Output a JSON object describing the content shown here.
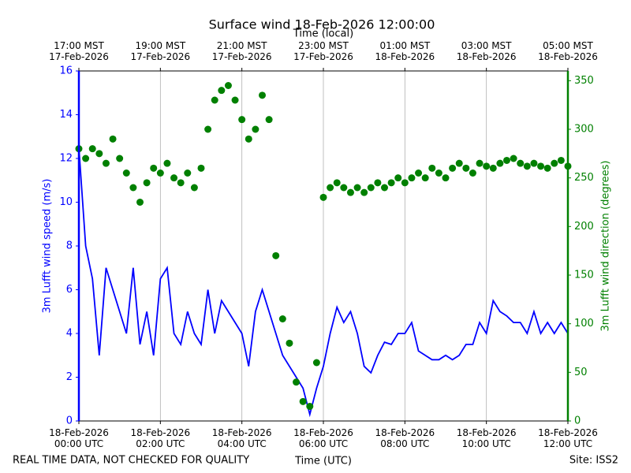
{
  "chart_data": {
    "type": "line",
    "title": "Surface wind 18-Feb-2026 12:00:00",
    "xlabel": "Time (UTC)",
    "x2label": "Time (local)",
    "ylabel": "3m Lufft wind speed (m/s)",
    "y2label": "3m Lufft wind direction (degrees)",
    "footer_left": "REAL TIME DATA, NOT CHECKED FOR QUALITY",
    "footer_right": "Site: ISS2",
    "x": [
      "2026-02-18T00:00",
      "2026-02-18T00:10",
      "2026-02-18T00:20",
      "2026-02-18T00:30",
      "2026-02-18T00:40",
      "2026-02-18T00:50",
      "2026-02-18T01:00",
      "2026-02-18T01:10",
      "2026-02-18T01:20",
      "2026-02-18T01:30",
      "2026-02-18T01:40",
      "2026-02-18T01:50",
      "2026-02-18T02:00",
      "2026-02-18T02:10",
      "2026-02-18T02:20",
      "2026-02-18T02:30",
      "2026-02-18T02:40",
      "2026-02-18T02:50",
      "2026-02-18T03:00",
      "2026-02-18T03:10",
      "2026-02-18T03:20",
      "2026-02-18T03:30",
      "2026-02-18T03:40",
      "2026-02-18T03:50",
      "2026-02-18T04:00",
      "2026-02-18T04:10",
      "2026-02-18T04:20",
      "2026-02-18T04:30",
      "2026-02-18T04:40",
      "2026-02-18T04:50",
      "2026-02-18T05:00",
      "2026-02-18T05:10",
      "2026-02-18T05:20",
      "2026-02-18T05:30",
      "2026-02-18T05:40",
      "2026-02-18T05:50",
      "2026-02-18T06:00",
      "2026-02-18T06:10",
      "2026-02-18T06:20",
      "2026-02-18T06:30",
      "2026-02-18T06:40",
      "2026-02-18T06:50",
      "2026-02-18T07:00",
      "2026-02-18T07:10",
      "2026-02-18T07:20",
      "2026-02-18T07:30",
      "2026-02-18T07:40",
      "2026-02-18T07:50",
      "2026-02-18T08:00",
      "2026-02-18T08:10",
      "2026-02-18T08:20",
      "2026-02-18T08:30",
      "2026-02-18T08:40",
      "2026-02-18T08:50",
      "2026-02-18T09:00",
      "2026-02-18T09:10",
      "2026-02-18T09:20",
      "2026-02-18T09:30",
      "2026-02-18T09:40",
      "2026-02-18T09:50",
      "2026-02-18T10:00",
      "2026-02-18T10:10",
      "2026-02-18T10:20",
      "2026-02-18T10:30",
      "2026-02-18T10:40",
      "2026-02-18T10:50",
      "2026-02-18T11:00",
      "2026-02-18T11:10",
      "2026-02-18T11:20",
      "2026-02-18T11:30",
      "2026-02-18T11:40",
      "2026-02-18T11:50",
      "2026-02-18T12:00"
    ],
    "series": [
      {
        "type": "line",
        "color": "#0000ff",
        "values": [
          12.5,
          8,
          6.5,
          3,
          7,
          6,
          5,
          4,
          7,
          3.5,
          5,
          3,
          6.5,
          7,
          4,
          3.5,
          5,
          4,
          3.5,
          6,
          4,
          5.5,
          5,
          4.5,
          4,
          2.5,
          5,
          6,
          5,
          4,
          3,
          2.5,
          2,
          1.5,
          0.3,
          1.5,
          2.5,
          4,
          5.2,
          4.5,
          5,
          4,
          2.5,
          2.2,
          3,
          3.6,
          3.5,
          4,
          4,
          4.5,
          3.2,
          3,
          2.8,
          2.8,
          3,
          2.8,
          3,
          3.5,
          3.5,
          4.5,
          4,
          5.5,
          5,
          4.8,
          4.5,
          4.5,
          4,
          5,
          4,
          4.5,
          4,
          4.5,
          4
        ]
      },
      {
        "type": "scatter",
        "axis": "y2",
        "color": "#008000",
        "values": [
          280,
          270,
          280,
          275,
          265,
          290,
          270,
          255,
          240,
          225,
          245,
          260,
          255,
          265,
          250,
          245,
          255,
          240,
          260,
          300,
          330,
          340,
          345,
          330,
          310,
          290,
          300,
          335,
          310,
          170,
          105,
          80,
          40,
          20,
          15,
          60,
          230,
          240,
          245,
          240,
          235,
          240,
          235,
          240,
          245,
          240,
          245,
          250,
          245,
          250,
          255,
          250,
          260,
          255,
          250,
          260,
          265,
          260,
          255,
          265,
          262,
          260,
          265,
          268,
          270,
          265,
          262,
          265,
          262,
          260,
          265,
          268,
          262
        ]
      }
    ],
    "xlim": [
      "2026-02-18T00:00",
      "2026-02-18T12:00"
    ],
    "xticks": [
      {
        "value": "2026-02-18T00:00",
        "label": "18-Feb-2026\n00:00 UTC"
      },
      {
        "value": "2026-02-18T02:00",
        "label": "18-Feb-2026\n02:00 UTC"
      },
      {
        "value": "2026-02-18T04:00",
        "label": "18-Feb-2026\n04:00 UTC"
      },
      {
        "value": "2026-02-18T06:00",
        "label": "18-Feb-2026\n06:00 UTC"
      },
      {
        "value": "2026-02-18T08:00",
        "label": "18-Feb-2026\n08:00 UTC"
      },
      {
        "value": "2026-02-18T10:00",
        "label": "18-Feb-2026\n10:00 UTC"
      },
      {
        "value": "2026-02-18T12:00",
        "label": "18-Feb-2026\n12:00 UTC"
      }
    ],
    "x2ticks": [
      {
        "value": "2026-02-18T00:00",
        "label": "17:00 MST\n17-Feb-2026"
      },
      {
        "value": "2026-02-18T02:00",
        "label": "19:00 MST\n17-Feb-2026"
      },
      {
        "value": "2026-02-18T04:00",
        "label": "21:00 MST\n17-Feb-2026"
      },
      {
        "value": "2026-02-18T06:00",
        "label": "23:00 MST\n17-Feb-2026"
      },
      {
        "value": "2026-02-18T08:00",
        "label": "01:00 MST\n18-Feb-2026"
      },
      {
        "value": "2026-02-18T10:00",
        "label": "03:00 MST\n18-Feb-2026"
      },
      {
        "value": "2026-02-18T12:00",
        "label": "05:00 MST\n18-Feb-2026"
      }
    ],
    "ylim": [
      0,
      16
    ],
    "yticks": [
      0,
      2,
      4,
      6,
      8,
      10,
      12,
      14,
      16
    ],
    "y2lim": [
      0,
      360
    ],
    "y2ticks": [
      0,
      50,
      100,
      150,
      200,
      250,
      300,
      350
    ],
    "xgrid": true
  }
}
